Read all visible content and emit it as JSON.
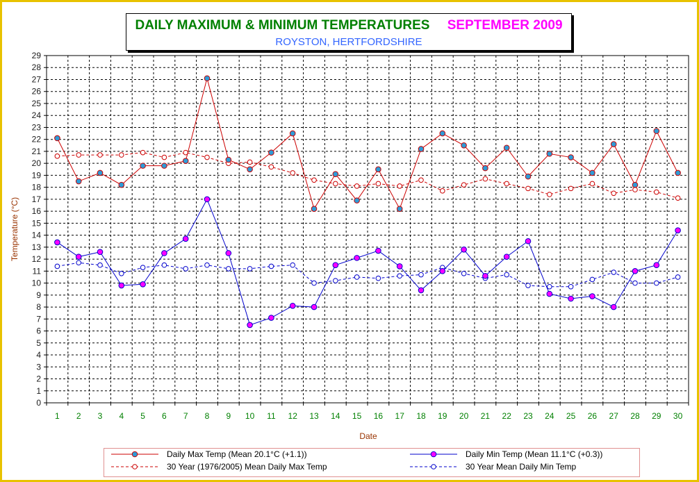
{
  "title": {
    "main": "DAILY MAXIMUM &  MINIMUM  TEMPERATURES",
    "month": "SEPTEMBER 2009",
    "subtitle": "ROYSTON, HERTFORDSHIRE"
  },
  "colors": {
    "max": "#cc0000",
    "min": "#0000cc",
    "max_marker": "#2e9bd6",
    "min_marker": "#ff00ff",
    "title_green": "#008000",
    "title_magenta": "#ff00ff",
    "subtitle_blue": "#3366ff",
    "frame": "#e8c200"
  },
  "chart_data": {
    "type": "line",
    "xlabel": "Date",
    "ylabel": "Temperature (°C)",
    "ylim": [
      0,
      29
    ],
    "grid": true,
    "legend_position": "bottom",
    "x": [
      1,
      2,
      3,
      4,
      5,
      6,
      7,
      8,
      9,
      10,
      11,
      12,
      13,
      14,
      15,
      16,
      17,
      18,
      19,
      20,
      21,
      22,
      23,
      24,
      25,
      26,
      27,
      28,
      29,
      30
    ],
    "series": [
      {
        "name": "Daily Max Temp (Mean 20.1°C (+1.1))",
        "style": "solid",
        "color": "#cc0000",
        "marker_color": "#2e9bd6",
        "values": [
          22.1,
          18.5,
          19.2,
          18.2,
          19.8,
          19.8,
          20.2,
          27.1,
          20.3,
          19.5,
          20.9,
          22.5,
          16.2,
          19.1,
          16.9,
          19.5,
          16.2,
          21.2,
          22.5,
          21.5,
          19.6,
          21.3,
          18.9,
          20.8,
          20.5,
          19.2,
          21.6,
          18.2,
          22.7,
          19.2
        ]
      },
      {
        "name": "Daily Min Temp (Mean 11.1°C (+0.3))",
        "style": "solid",
        "color": "#0000cc",
        "marker_color": "#ff00ff",
        "values": [
          13.4,
          12.2,
          12.6,
          9.8,
          9.9,
          12.5,
          13.7,
          17.0,
          12.5,
          6.5,
          7.1,
          8.1,
          8.0,
          11.5,
          12.1,
          12.7,
          11.4,
          9.4,
          11.0,
          12.8,
          10.6,
          12.2,
          13.5,
          9.1,
          8.7,
          8.9,
          8.0,
          11.0,
          11.5,
          14.4
        ]
      },
      {
        "name": "30 Year (1976/2005) Mean Daily Max Temp",
        "style": "dashed",
        "color": "#cc0000",
        "values": [
          20.6,
          20.7,
          20.7,
          20.7,
          20.9,
          20.5,
          20.9,
          20.5,
          20.0,
          20.1,
          19.7,
          19.2,
          18.6,
          18.3,
          18.1,
          18.3,
          18.1,
          18.6,
          17.7,
          18.2,
          18.7,
          18.3,
          17.9,
          17.4,
          17.9,
          18.3,
          17.5,
          17.8,
          17.6,
          17.1
        ]
      },
      {
        "name": "30 Year Mean Daily Min Temp",
        "style": "dashed",
        "color": "#0000cc",
        "values": [
          11.4,
          11.7,
          11.5,
          10.8,
          11.3,
          11.5,
          11.2,
          11.5,
          11.2,
          11.2,
          11.4,
          11.5,
          10.0,
          10.2,
          10.5,
          10.4,
          10.6,
          10.7,
          11.3,
          10.8,
          10.4,
          10.7,
          9.8,
          9.7,
          9.7,
          10.3,
          10.9,
          10.0,
          10.0,
          10.5
        ]
      }
    ]
  }
}
